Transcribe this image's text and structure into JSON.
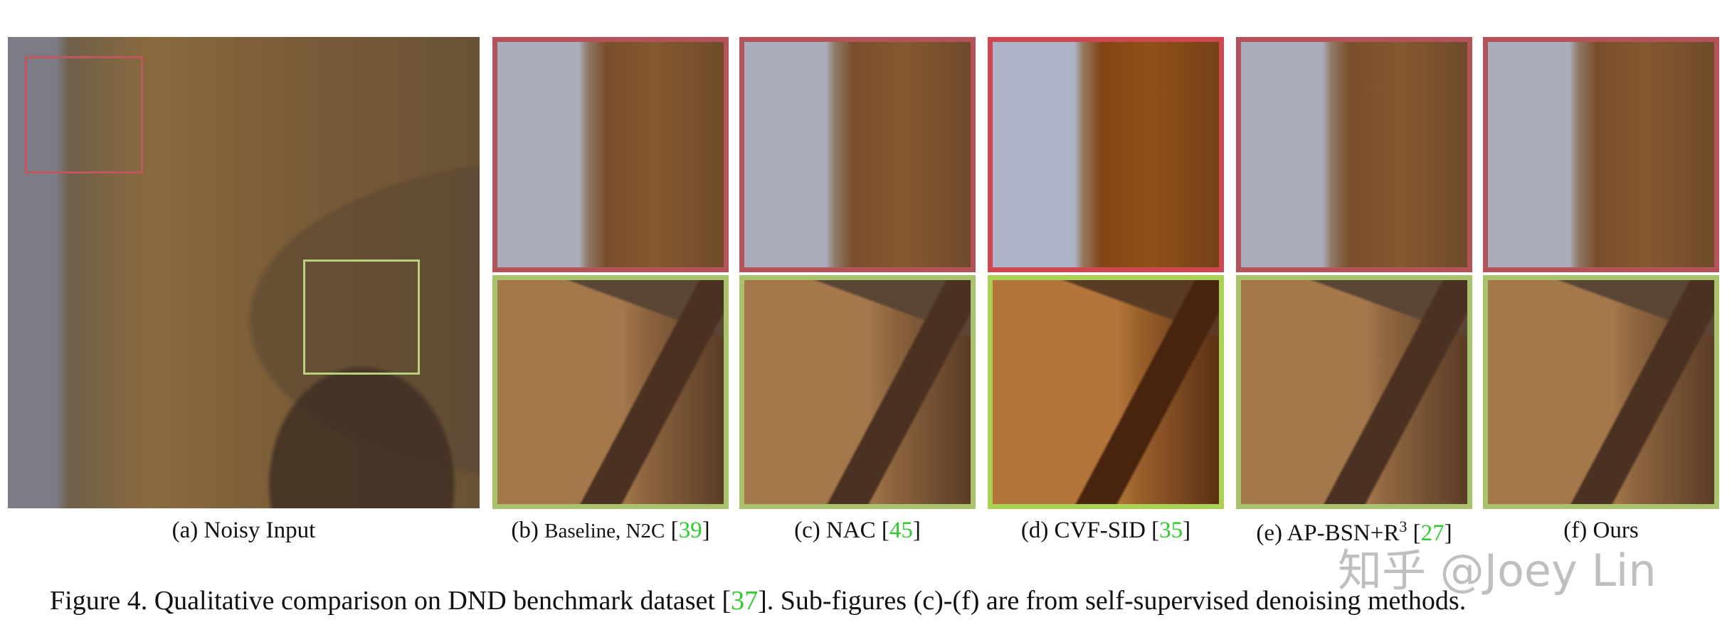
{
  "subfigures": [
    {
      "parts": [
        "(a) Noisy Input"
      ]
    },
    {
      "parts": [
        "(b) ",
        "Baseline, N2C",
        " [",
        "39",
        "]"
      ]
    },
    {
      "parts": [
        "(c) NAC [",
        "45",
        "]"
      ]
    },
    {
      "parts": [
        "(d) CVF-SID [",
        "35",
        "]"
      ]
    },
    {
      "parts": [
        "(e) AP-BSN+R",
        "3",
        " [",
        "27",
        "]"
      ]
    },
    {
      "parts": [
        "(f) Ours"
      ]
    }
  ],
  "caption": {
    "parts": [
      "Figure 4. Qualitative comparison on DND benchmark dataset [",
      "37",
      "]. Sub-figures (c)-(f) are from self-supervised denoising methods."
    ]
  },
  "watermark": "知乎 @Joey Lin"
}
